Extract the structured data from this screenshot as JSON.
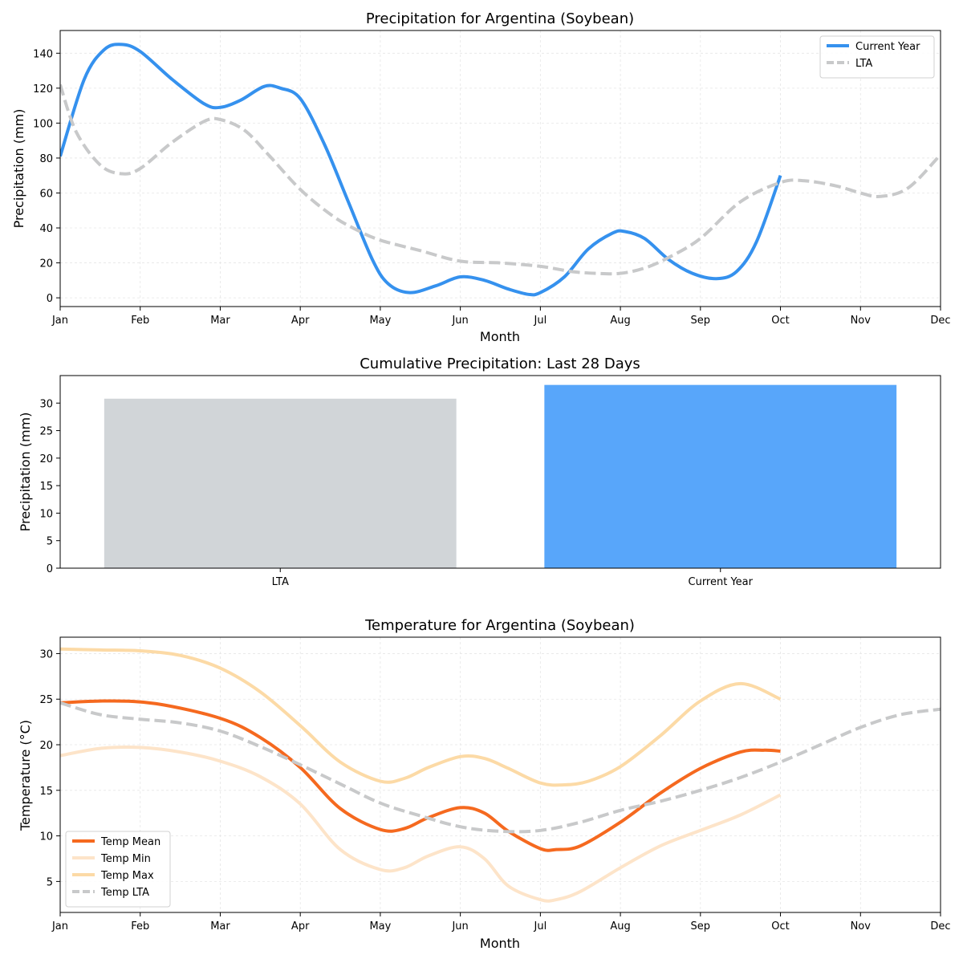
{
  "chart_data": [
    {
      "type": "line",
      "title": "Precipitation for Argentina (Soybean)",
      "xlabel": "Month",
      "ylabel": "Precipitation (mm)",
      "xlim": [
        0,
        11
      ],
      "ylim": [
        -5,
        153
      ],
      "x_ticks": [
        "Jan",
        "Feb",
        "Mar",
        "Apr",
        "May",
        "Jun",
        "Jul",
        "Aug",
        "Sep",
        "Oct",
        "Nov",
        "Dec"
      ],
      "y_ticks": [
        0,
        20,
        40,
        60,
        80,
        100,
        120,
        140
      ],
      "grid": true,
      "legend_position": "top-right",
      "series": [
        {
          "name": "Current Year",
          "color": "#3591ee",
          "style": "solid",
          "x": [
            0,
            0.3,
            0.55,
            0.77,
            1.0,
            1.4,
            1.8,
            2.0,
            2.25,
            2.55,
            2.75,
            3.0,
            3.3,
            3.6,
            3.9,
            4.1,
            4.37,
            4.7,
            5.0,
            5.3,
            5.6,
            5.85,
            6.0,
            6.3,
            6.6,
            6.9,
            7.05,
            7.3,
            7.6,
            7.9,
            8.2,
            8.45,
            8.7,
            9.0
          ],
          "values": [
            81,
            125,
            142,
            145,
            141,
            125,
            111,
            109,
            113,
            121,
            120,
            114,
            88,
            55,
            22,
            8,
            3,
            7,
            12,
            10,
            5,
            2,
            3,
            12,
            28,
            37,
            38,
            34,
            22,
            14,
            11,
            15,
            32,
            70
          ]
        },
        {
          "name": "LTA",
          "color": "#c8c9ca",
          "style": "dashed",
          "x": [
            0,
            0.2,
            0.5,
            0.77,
            1.0,
            1.4,
            1.8,
            2.0,
            2.3,
            2.6,
            3.0,
            3.4,
            3.7,
            4.0,
            4.5,
            5.0,
            5.5,
            6.0,
            6.4,
            6.7,
            7.0,
            7.3,
            7.6,
            8.0,
            8.5,
            9.0,
            9.3,
            9.7,
            10.0,
            10.25,
            10.6,
            11.0
          ],
          "values": [
            122,
            95,
            76,
            71,
            74,
            89,
            101,
            102,
            96,
            82,
            62,
            47,
            39,
            33,
            27,
            21,
            20,
            18,
            15,
            14,
            14,
            17,
            23,
            34,
            55,
            66,
            67,
            64,
            60,
            58,
            63,
            82
          ]
        }
      ]
    },
    {
      "type": "bar",
      "title": "Cumulative Precipitation: Last 28 Days",
      "xlabel": "",
      "ylabel": "Precipitation (mm)",
      "categories": [
        "LTA",
        "Current Year"
      ],
      "values": [
        30.8,
        33.3
      ],
      "colors": [
        "#d1d5d8",
        "#58a6fa"
      ],
      "ylim": [
        0,
        35
      ],
      "y_ticks": [
        0,
        5,
        10,
        15,
        20,
        25,
        30
      ]
    },
    {
      "type": "line",
      "title": "Temperature for Argentina (Soybean)",
      "xlabel": "Month",
      "ylabel": "Temperature (°C)",
      "xlim": [
        0,
        11
      ],
      "ylim": [
        1.6,
        31.8
      ],
      "x_ticks": [
        "Jan",
        "Feb",
        "Mar",
        "Apr",
        "May",
        "Jun",
        "Jul",
        "Aug",
        "Sep",
        "Oct",
        "Nov",
        "Dec"
      ],
      "y_ticks": [
        5,
        10,
        15,
        20,
        25,
        30
      ],
      "grid": true,
      "legend_position": "bottom-left",
      "series": [
        {
          "name": "Temp Mean",
          "color": "#f5691f",
          "style": "solid",
          "x": [
            0,
            0.6,
            1.2,
            2.0,
            2.5,
            3.0,
            3.5,
            4.0,
            4.3,
            4.6,
            5.0,
            5.3,
            5.6,
            6.0,
            6.2,
            6.5,
            7.0,
            7.5,
            8.0,
            8.5,
            8.8,
            9.0
          ],
          "values": [
            24.6,
            24.8,
            24.5,
            22.9,
            20.8,
            17.5,
            13.0,
            10.7,
            10.8,
            12.0,
            13.1,
            12.5,
            10.5,
            8.6,
            8.5,
            8.9,
            11.5,
            14.7,
            17.4,
            19.2,
            19.4,
            19.3
          ]
        },
        {
          "name": "Temp Min",
          "color": "#fde4c9",
          "style": "solid",
          "x": [
            0,
            0.5,
            1.0,
            1.5,
            2.0,
            2.5,
            3.0,
            3.5,
            4.0,
            4.3,
            4.6,
            5.0,
            5.3,
            5.6,
            6.0,
            6.2,
            6.5,
            7.0,
            7.5,
            8.0,
            8.5,
            9.0
          ],
          "values": [
            18.8,
            19.6,
            19.7,
            19.2,
            18.2,
            16.5,
            13.5,
            8.5,
            6.3,
            6.5,
            7.8,
            8.8,
            7.5,
            4.5,
            3.0,
            3.0,
            3.9,
            6.5,
            8.9,
            10.6,
            12.3,
            14.5
          ]
        },
        {
          "name": "Temp Max",
          "color": "#fcdaa6",
          "style": "solid",
          "x": [
            0,
            0.5,
            1.0,
            1.5,
            2.0,
            2.5,
            3.0,
            3.5,
            4.0,
            4.3,
            4.6,
            5.0,
            5.3,
            5.6,
            6.0,
            6.3,
            6.6,
            7.0,
            7.5,
            8.0,
            8.5,
            9.0
          ],
          "values": [
            30.5,
            30.4,
            30.3,
            29.8,
            28.4,
            25.8,
            22.1,
            18.1,
            16.0,
            16.3,
            17.5,
            18.7,
            18.5,
            17.4,
            15.8,
            15.6,
            16.0,
            17.6,
            21.0,
            24.8,
            26.7,
            25.0
          ]
        },
        {
          "name": "Temp LTA",
          "color": "#c8c9ca",
          "style": "dashed",
          "x": [
            0,
            0.5,
            1.0,
            1.5,
            2.0,
            2.5,
            3.0,
            3.5,
            4.0,
            4.5,
            5.0,
            5.5,
            6.0,
            6.5,
            7.0,
            7.5,
            8.0,
            8.5,
            9.0,
            9.5,
            10.0,
            10.5,
            11.0
          ],
          "values": [
            24.6,
            23.3,
            22.8,
            22.4,
            21.5,
            19.8,
            17.8,
            15.7,
            13.6,
            12.2,
            11.0,
            10.5,
            10.6,
            11.5,
            12.8,
            13.8,
            15.0,
            16.4,
            18.1,
            20.0,
            21.9,
            23.3,
            23.9
          ]
        }
      ]
    }
  ]
}
